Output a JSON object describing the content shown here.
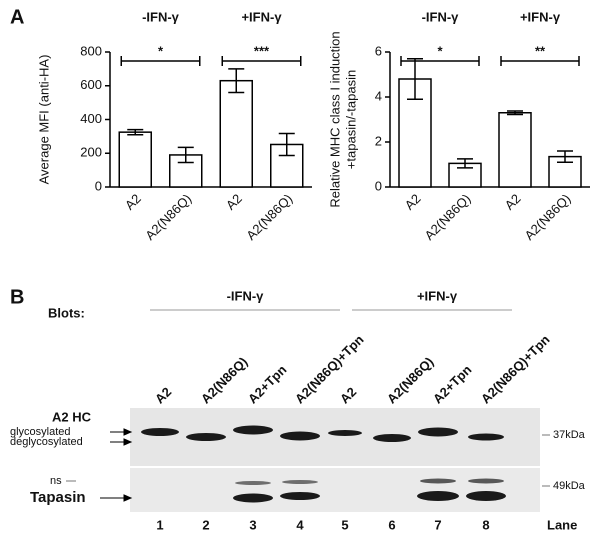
{
  "panel_a": {
    "label": "A"
  },
  "chart_data": [
    {
      "type": "bar",
      "y_label": [
        "Average MFI (anti-HA)"
      ],
      "categories": [
        "A2",
        "A2(N86Q)",
        "A2",
        "A2(N86Q)"
      ],
      "values": [
        325,
        190,
        630,
        252
      ],
      "errors": [
        15,
        45,
        70,
        65
      ],
      "groups": [
        {
          "label": "-IFN-γ",
          "sig": "*"
        },
        {
          "label": "+IFN-γ",
          "sig": "***"
        }
      ],
      "ylim": [
        0,
        800
      ],
      "yticks": [
        0,
        200,
        400,
        600,
        800
      ],
      "color": "#ffffff"
    },
    {
      "type": "bar",
      "y_label": [
        "Relative MHC class I induction",
        "+tapasin/-tapasin"
      ],
      "categories": [
        "A2",
        "A2(N86Q)",
        "A2",
        "A2(N86Q)"
      ],
      "values": [
        4.8,
        1.05,
        3.3,
        1.35
      ],
      "errors": [
        0.9,
        0.2,
        0.08,
        0.25
      ],
      "groups": [
        {
          "label": "-IFN-γ",
          "sig": "*"
        },
        {
          "label": "+IFN-γ",
          "sig": "**"
        }
      ],
      "ylim": [
        0,
        6
      ],
      "yticks": [
        0,
        2,
        4,
        6
      ],
      "color": "#ffffff"
    }
  ],
  "panel_b": {
    "label": "B",
    "blots_label": "Blots:",
    "conditions": [
      "-IFN-γ",
      "+IFN-γ"
    ],
    "lanes": [
      "A2",
      "A2(N86Q)",
      "A2+Tpn",
      "A2(N86Q)+Tpn",
      "A2",
      "A2(N86Q)",
      "A2+Tpn",
      "A2(N86Q)+Tpn"
    ],
    "lane_numbers": [
      1,
      2,
      3,
      4,
      5,
      6,
      7,
      8
    ],
    "lane_label": "Lane",
    "a2hc_label": "A2 HC",
    "glyco": "glycosylated",
    "deglyco": "deglycosylated",
    "marker_37": "37kDa",
    "ns": "ns",
    "tapasin": "Tapasin",
    "marker_49": "49kDa"
  }
}
